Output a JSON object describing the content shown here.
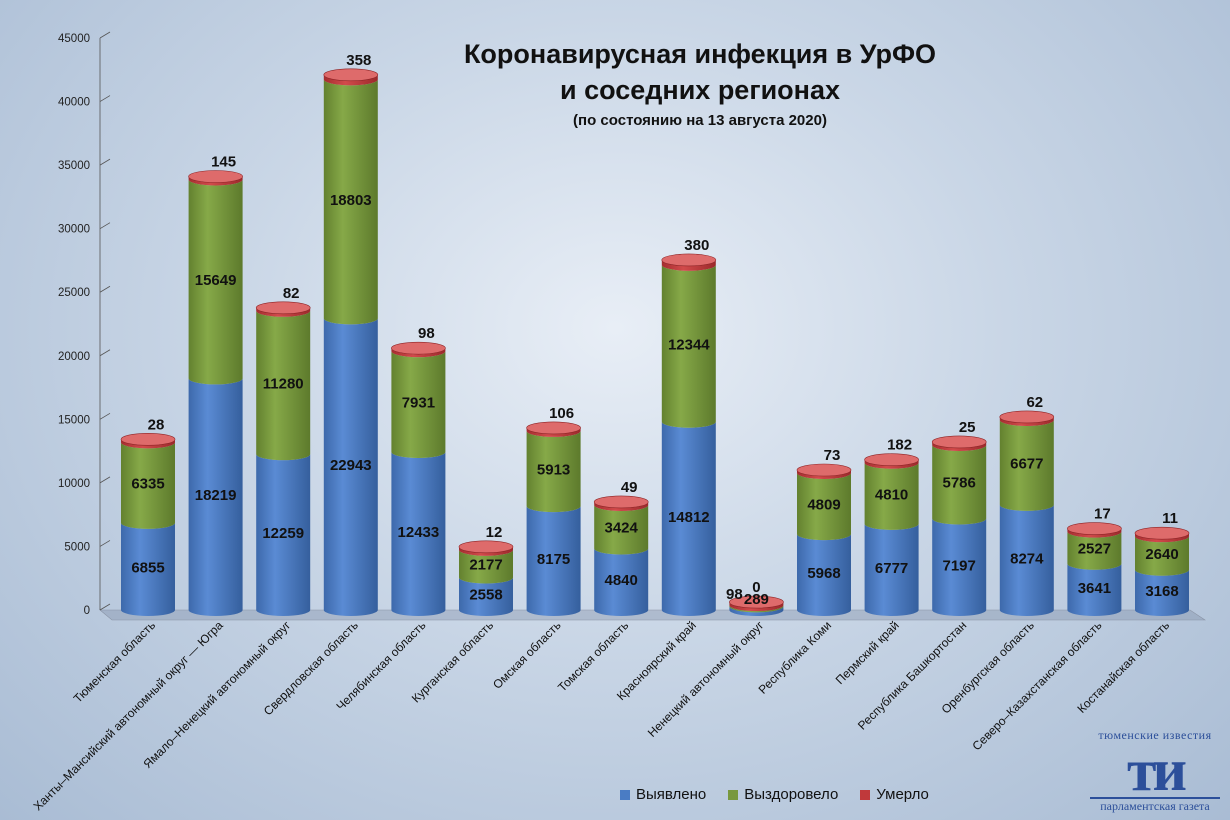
{
  "colors": {
    "detected": "#4a7cc4",
    "recovered": "#78983e",
    "died": "#c0393b"
  },
  "legend": {
    "detected": "Выявлено",
    "recovered": "Выздоровело",
    "died": "Умерло"
  },
  "logo": {
    "top": "тюменские известия",
    "mark": "ти",
    "bottom": "парламентская газета"
  },
  "chart_data": {
    "type": "bar",
    "stacked": true,
    "title": "Коронавирусная инфекция в УрФО",
    "title_line2": "и соседних регионах",
    "subtitle": "(по состоянию на 13 августа 2020)",
    "ylim": [
      0,
      45000
    ],
    "yticks": [
      0,
      5000,
      10000,
      15000,
      20000,
      25000,
      30000,
      35000,
      40000,
      45000
    ],
    "categories": [
      "Тюменская область",
      "Ханты–Мансийский автономный округ — Югра",
      "Ямало–Ненецкий автономный округ",
      "Свердловская область",
      "Челябинская область",
      "Курганская область",
      "Омская область",
      "Томская область",
      "Красноярский край",
      "Ненецкий автономный округ",
      "Республика Коми",
      "Пермский край",
      "Республика Башкортостан",
      "Оренбургская область",
      "Северо–Казахстанская область",
      "Костанайская область"
    ],
    "series": [
      {
        "name": "Выявлено",
        "values": [
          6855,
          18219,
          12259,
          22943,
          12433,
          2558,
          8175,
          4840,
          14812,
          289,
          5968,
          6777,
          7197,
          8274,
          3641,
          3168
        ]
      },
      {
        "name": "Выздоровело",
        "values": [
          6335,
          15649,
          11280,
          18803,
          7931,
          2177,
          5913,
          3424,
          12344,
          98,
          4809,
          4810,
          5786,
          6677,
          2527,
          2640
        ]
      },
      {
        "name": "Умерло",
        "values": [
          28,
          145,
          82,
          358,
          98,
          12,
          106,
          49,
          380,
          0,
          73,
          182,
          25,
          62,
          17,
          11
        ]
      }
    ]
  }
}
